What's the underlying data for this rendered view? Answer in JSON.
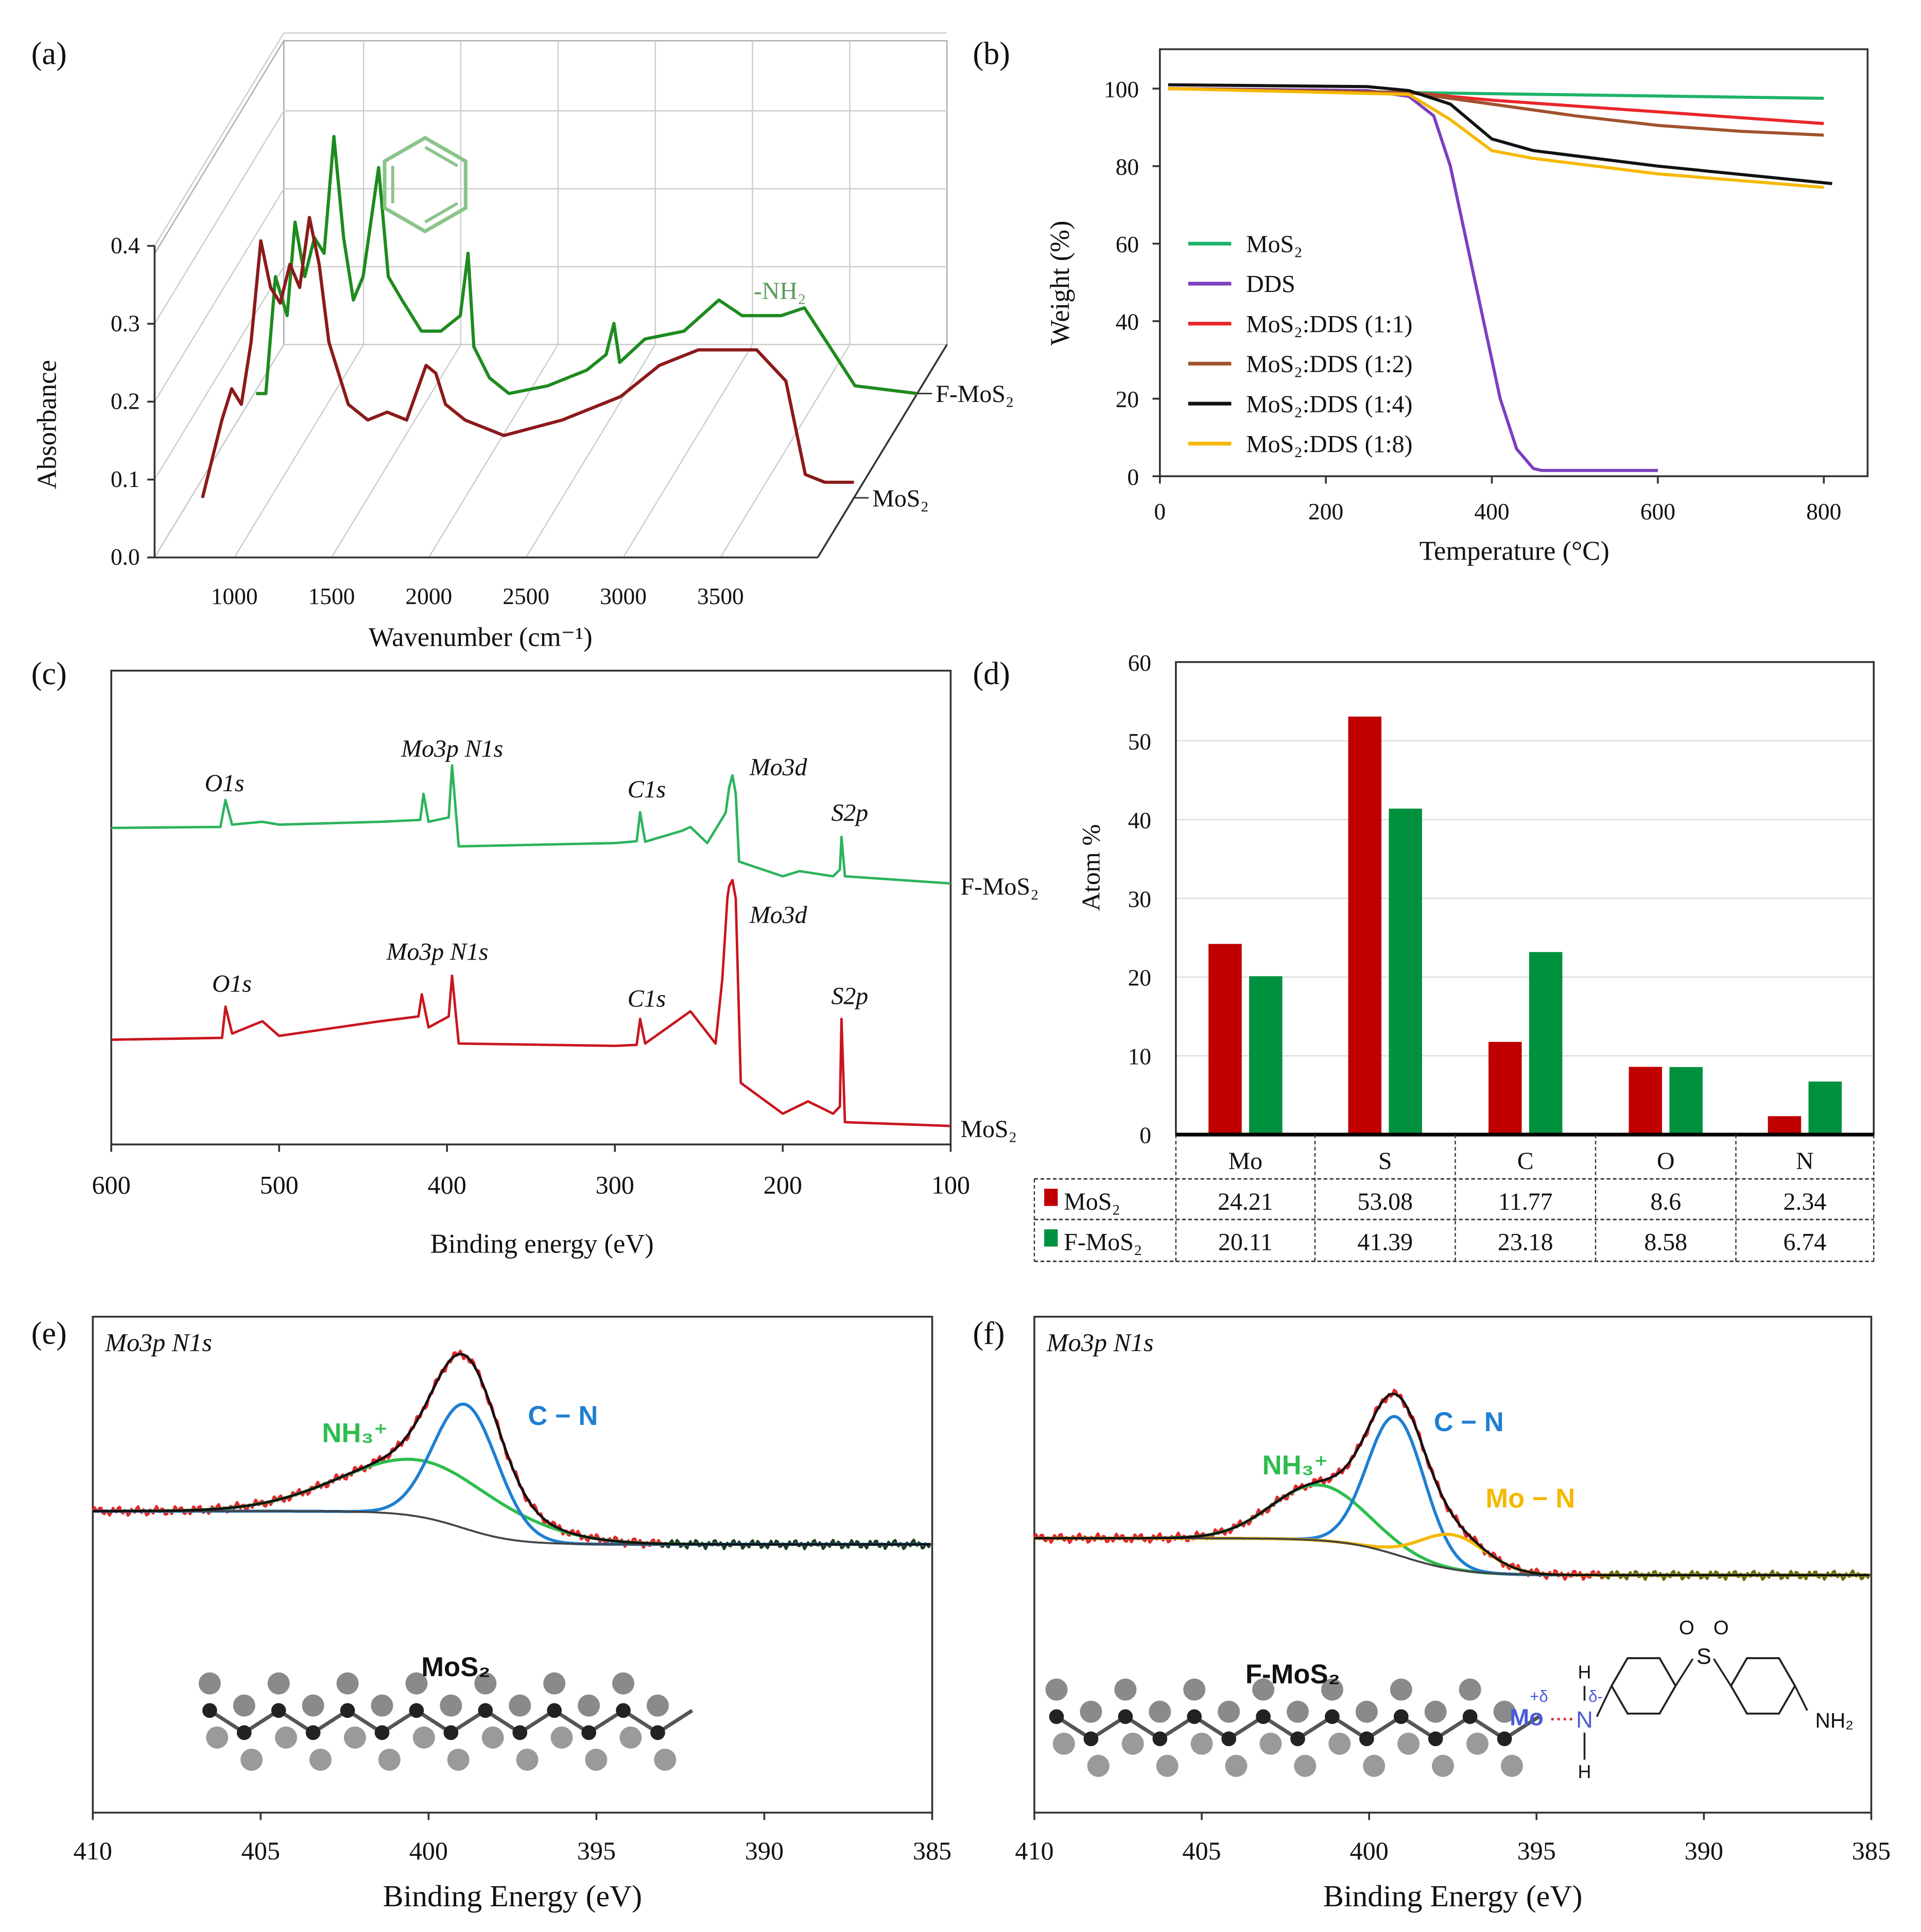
{
  "panel_labels": [
    "(a)",
    "(b)",
    "(c)",
    "(d)",
    "(e)",
    "(f)"
  ],
  "chart_data": [
    {
      "type": "line",
      "style": "3d-waterfall",
      "title": "",
      "xlabel": "Wavenumber (cm⁻¹)",
      "ylabel": "Absorbance",
      "xlim": [
        590,
        4000
      ],
      "zlim": [
        0,
        0.4
      ],
      "x_ticks": [
        "1000",
        "1500",
        "2000",
        "2500",
        "3000",
        "3500"
      ],
      "x_tick_values": [
        1000,
        1500,
        2000,
        2500,
        3000,
        3500
      ],
      "z_ticks": [
        "0.0",
        "0.1",
        "0.2",
        "0.3",
        "0.4"
      ],
      "z_tick_values": [
        0,
        0.1,
        0.2,
        0.3,
        0.4
      ],
      "annotation": "-NH₂",
      "series": [
        {
          "name": "MoS₂",
          "color": "#8b1a1a",
          "x": [
            650,
            700,
            750,
            800,
            850,
            900,
            950,
            1000,
            1050,
            1100,
            1150,
            1200,
            1250,
            1300,
            1400,
            1500,
            1600,
            1700,
            1800,
            1850,
            1900,
            2000,
            2200,
            2500,
            2800,
            3000,
            3200,
            3500,
            3650,
            3750,
            3850,
            4000
          ],
          "y": [
            0.0,
            0.05,
            0.1,
            0.14,
            0.12,
            0.2,
            0.33,
            0.27,
            0.25,
            0.3,
            0.27,
            0.36,
            0.3,
            0.2,
            0.12,
            0.1,
            0.11,
            0.1,
            0.17,
            0.16,
            0.12,
            0.1,
            0.08,
            0.1,
            0.13,
            0.17,
            0.19,
            0.19,
            0.15,
            0.03,
            0.02,
            0.02
          ]
        },
        {
          "name": "F-MoS₂",
          "color": "#1e8b1e",
          "x": [
            600,
            650,
            700,
            760,
            800,
            850,
            900,
            950,
            1000,
            1050,
            1100,
            1150,
            1230,
            1280,
            1350,
            1450,
            1550,
            1650,
            1690,
            1720,
            1800,
            1900,
            2100,
            2300,
            2400,
            2440,
            2470,
            2600,
            2800,
            2980,
            3100,
            3300,
            3420,
            3550,
            3680,
            4000
          ],
          "y": [
            0.0,
            0.0,
            0.15,
            0.1,
            0.22,
            0.15,
            0.2,
            0.18,
            0.33,
            0.2,
            0.12,
            0.15,
            0.29,
            0.15,
            0.12,
            0.08,
            0.08,
            0.1,
            0.18,
            0.06,
            0.02,
            0.0,
            0.01,
            0.03,
            0.05,
            0.09,
            0.04,
            0.07,
            0.08,
            0.12,
            0.1,
            0.1,
            0.11,
            0.06,
            0.01,
            0.0
          ]
        }
      ]
    },
    {
      "type": "line",
      "title": "",
      "xlabel": "Temperature (°C)",
      "ylabel": "Weight (%)",
      "xlim": [
        0,
        850
      ],
      "ylim": [
        0,
        110
      ],
      "x_ticks": [
        "0",
        "200",
        "400",
        "600",
        "800"
      ],
      "x_tick_values": [
        0,
        200,
        400,
        600,
        800
      ],
      "y_ticks": [
        "0",
        "20",
        "40",
        "60",
        "80",
        "100"
      ],
      "y_tick_values": [
        0,
        20,
        40,
        60,
        80,
        100
      ],
      "legend_position": "left",
      "series": [
        {
          "name": "MoS₂",
          "color": "#1db36a",
          "x": [
            10,
            300,
            800
          ],
          "y": [
            100,
            99,
            97.5
          ]
        },
        {
          "name": "DDS",
          "color": "#7b3fbf",
          "x": [
            10,
            250,
            300,
            330,
            350,
            370,
            390,
            410,
            430,
            450,
            460,
            600
          ],
          "y": [
            100,
            99.5,
            98,
            93,
            80,
            60,
            40,
            20,
            7,
            2,
            1.5,
            1.5
          ]
        },
        {
          "name": "MoS₂:DDS (1:1)",
          "color": "#e8262a",
          "x": [
            10,
            300,
            400,
            600,
            800
          ],
          "y": [
            100,
            99,
            97,
            94,
            91
          ]
        },
        {
          "name": "MoS₂:DDS (1:2)",
          "color": "#a0522d",
          "x": [
            10,
            300,
            400,
            500,
            600,
            700,
            800
          ],
          "y": [
            100,
            99,
            96,
            93,
            90.5,
            89,
            88
          ]
        },
        {
          "name": "MoS₂:DDS (1:4)",
          "color": "#111111",
          "x": [
            10,
            250,
            300,
            350,
            400,
            450,
            600,
            810
          ],
          "y": [
            101,
            100.5,
            99.5,
            96,
            87,
            84,
            80,
            75.5
          ]
        },
        {
          "name": "MoS₂:DDS (1:8)",
          "color": "#f5b800",
          "x": [
            10,
            300,
            350,
            400,
            450,
            600,
            800
          ],
          "y": [
            100,
            98.5,
            92,
            84,
            82,
            78,
            74.5
          ]
        }
      ]
    },
    {
      "type": "line",
      "title": "",
      "xlabel": "Binding energy (eV)",
      "ylabel": "",
      "xlim": [
        600,
        100
      ],
      "ylim": [
        0,
        100
      ],
      "x_ticks": [
        "600",
        "500",
        "400",
        "300",
        "200",
        "100"
      ],
      "x_tick_values": [
        600,
        500,
        400,
        300,
        200,
        100
      ],
      "series": [
        {
          "name": "F-MoS₂",
          "color": "#2db35d",
          "x": [
            600,
            535,
            532,
            528,
            510,
            500,
            440,
            416,
            414,
            411,
            399,
            397,
            393,
            300,
            287,
            285,
            282,
            260,
            255,
            245,
            234,
            232,
            230,
            228,
            226,
            200,
            190,
            170,
            166,
            165,
            163,
            100
          ],
          "y": [
            66.8,
            67.0,
            72.7,
            67.5,
            68.1,
            67.5,
            68.1,
            68.5,
            74.0,
            68.1,
            69,
            80.0,
            62.9,
            63.6,
            64,
            70.1,
            63.9,
            66.2,
            67.0,
            63.6,
            70,
            75.3,
            77.9,
            74.0,
            59.7,
            56.6,
            57.7,
            56.6,
            58,
            64.9,
            56.6,
            55.1
          ],
          "annotations": [
            "O1s",
            "Mo3p N1s",
            "C1s",
            "Mo3d",
            "S2p"
          ]
        },
        {
          "name": "MoS₂",
          "color": "#c8161e",
          "x": [
            600,
            534,
            532,
            528,
            510,
            500,
            440,
            417,
            415,
            411,
            399,
            397,
            393,
            300,
            287,
            285,
            282,
            255,
            240,
            236,
            233,
            232,
            230,
            228,
            225,
            200,
            185,
            170,
            166,
            165,
            163,
            100
          ],
          "y": [
            22.1,
            22.5,
            29.1,
            23.4,
            26.0,
            22.9,
            26.0,
            27,
            31.7,
            24.7,
            27,
            35.6,
            21.3,
            20.8,
            21,
            26.5,
            21.3,
            28.1,
            21.3,
            35,
            52,
            54.5,
            55.8,
            51.9,
            13.0,
            6.5,
            9.1,
            6.5,
            8,
            26.5,
            4.7,
            3.9
          ],
          "annotations": [
            "O1s",
            "Mo3p N1s",
            "C1s",
            "Mo3d",
            "S2p"
          ]
        }
      ]
    },
    {
      "type": "bar",
      "title": "",
      "xlabel": "",
      "ylabel": "Atom %",
      "ylim": [
        0,
        60
      ],
      "y_ticks": [
        "0",
        "10",
        "20",
        "30",
        "40",
        "50",
        "60"
      ],
      "y_tick_values": [
        0,
        10,
        20,
        30,
        40,
        50,
        60
      ],
      "categories": [
        "Mo",
        "S",
        "C",
        "O",
        "N"
      ],
      "grid": true,
      "series": [
        {
          "name": "MoS₂",
          "color": "#c00000",
          "values": [
            24.21,
            53.08,
            11.77,
            8.6,
            2.34
          ],
          "labels": [
            "24.21",
            "53.08",
            "11.77",
            "8.6",
            "2.34"
          ]
        },
        {
          "name": "F-MoS₂",
          "color": "#00913f",
          "values": [
            20.11,
            41.39,
            23.18,
            8.58,
            6.74
          ],
          "labels": [
            "20.11",
            "41.39",
            "23.18",
            "8.58",
            "6.74"
          ]
        }
      ]
    },
    {
      "type": "line",
      "title": "Mo3p N1s",
      "xlabel": "Binding Energy (eV)",
      "xlim": [
        410,
        385
      ],
      "x_ticks": [
        "410",
        "405",
        "400",
        "395",
        "390",
        "385"
      ],
      "x_tick_values": [
        410,
        405,
        400,
        395,
        390,
        385
      ],
      "background": {
        "left": 245,
        "right": 218,
        "center": 399,
        "width": 0.8
      },
      "components": [
        {
          "name": "NH₃⁺",
          "color": "#2dbd4e",
          "center": 400.2,
          "height": 46,
          "sigma": 2.4
        },
        {
          "name": "C − N",
          "color": "#1f7fd1",
          "center": 398.9,
          "height": 101,
          "sigma": 0.95
        }
      ],
      "illustration_label": "MoS₂"
    },
    {
      "type": "line",
      "title": "Mo3p N1s",
      "xlabel": "Binding Energy (eV)",
      "xlim": [
        410,
        385
      ],
      "x_ticks": [
        "410",
        "405",
        "400",
        "395",
        "390",
        "385"
      ],
      "x_tick_values": [
        410,
        405,
        400,
        395,
        390,
        385
      ],
      "background": {
        "left": 223,
        "right": 193,
        "center": 399,
        "width": 0.9
      },
      "components": [
        {
          "name": "NH₃⁺",
          "color": "#2dbd4e",
          "center": 401.5,
          "height": 45,
          "sigma": 1.4
        },
        {
          "name": "C − N",
          "color": "#1f7fd1",
          "center": 399.2,
          "height": 112,
          "sigma": 0.85
        },
        {
          "name": "Mo − N",
          "color": "#f5b800",
          "center": 397.5,
          "height": 28,
          "sigma": 1.0
        }
      ],
      "illustration_label": "F-MoS₂",
      "structure_labels": {
        "mo": "Mo",
        "plus_delta": "+δ",
        "n": "N",
        "minus_delta": "δ-",
        "h": "H",
        "s": "S",
        "o": "O",
        "nh2": "NH₂"
      }
    }
  ]
}
